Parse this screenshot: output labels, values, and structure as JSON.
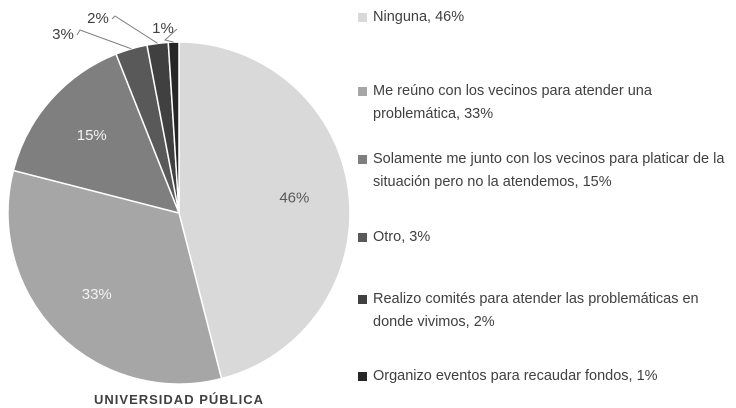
{
  "chart_data": {
    "type": "pie",
    "title": "UNIVERSIDAD PÚBLICA",
    "categories": [
      "Ninguna, 46%",
      "Me reúno con los vecinos para atender una problemática, 33%",
      "Solamente me junto con los vecinos para platicar de la situación pero no la atendemos, 15%",
      "Otro, 3%",
      "Realizo comités para atender las problemáticas en donde vivimos, 2%",
      "Organizo eventos para recaudar fondos, 1%"
    ],
    "values": [
      46,
      33,
      15,
      3,
      2,
      1
    ],
    "value_labels": [
      "46%",
      "33%",
      "15%",
      "3%",
      "2%",
      "1%"
    ],
    "colors": [
      "#d9d9d9",
      "#a6a6a6",
      "#7f7f7f",
      "#595959",
      "#404040",
      "#262626"
    ]
  }
}
